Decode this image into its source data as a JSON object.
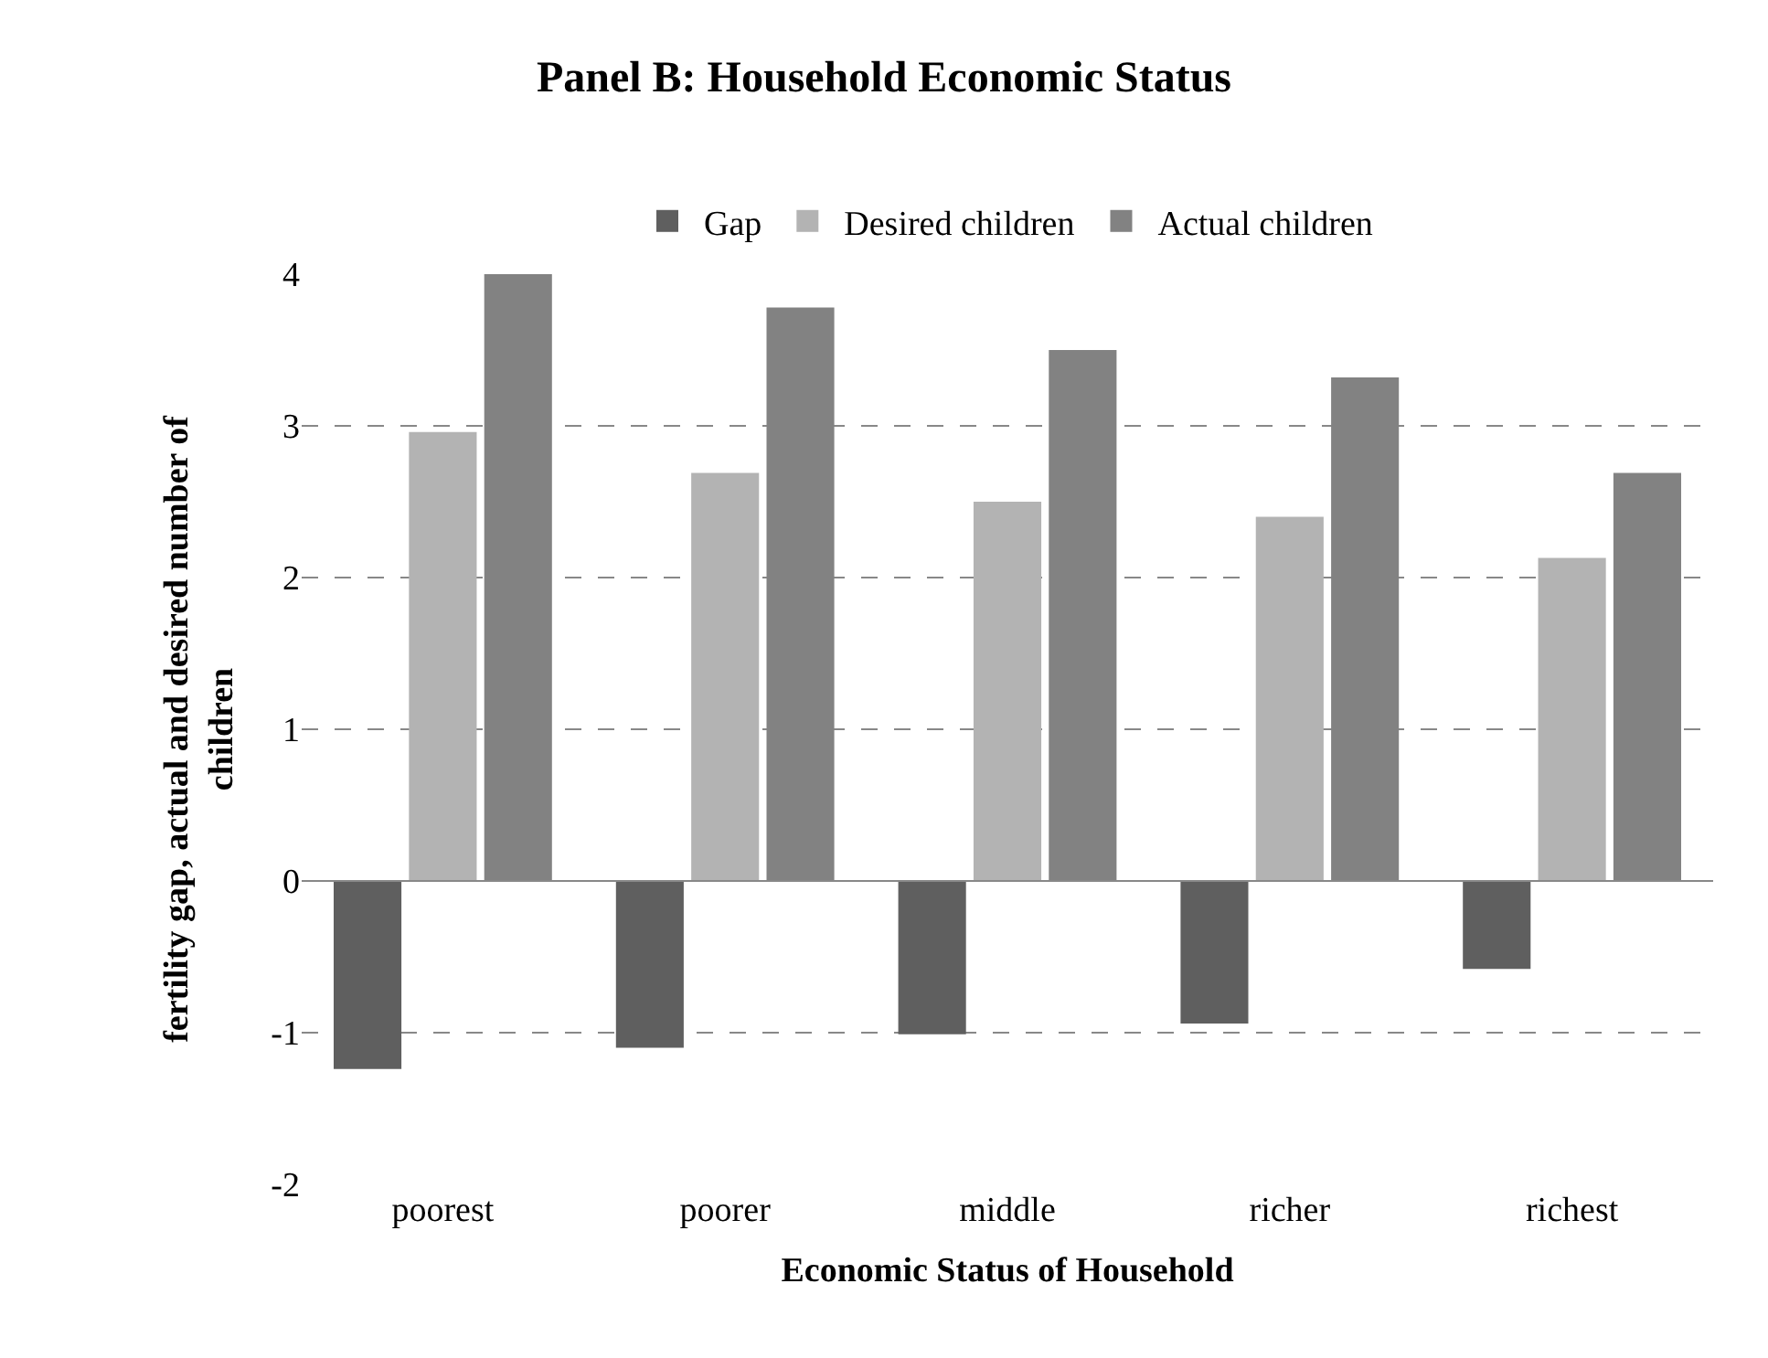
{
  "chart_data": {
    "type": "bar",
    "title": "Panel B: Household Economic Status",
    "xlabel": "Economic Status of Household",
    "ylabel": "fertility gap, actual and desired number of\nchildren",
    "categories": [
      "poorest",
      "poorer",
      "middle",
      "richer",
      "richest"
    ],
    "series": [
      {
        "name": "Gap",
        "color": "#5f5f5f",
        "values": [
          -1.24,
          -1.1,
          -1.01,
          -0.94,
          -0.58
        ]
      },
      {
        "name": "Desired children",
        "color": "#b3b3b3",
        "values": [
          2.96,
          2.69,
          2.5,
          2.4,
          2.13
        ]
      },
      {
        "name": "Actual children",
        "color": "#828282",
        "values": [
          4.0,
          3.78,
          3.5,
          3.32,
          2.69
        ]
      }
    ],
    "ylim": [
      -2,
      4
    ],
    "yticks": [
      -2,
      -1,
      0,
      1,
      2,
      3,
      4
    ],
    "grid": "y",
    "legend": "top"
  }
}
